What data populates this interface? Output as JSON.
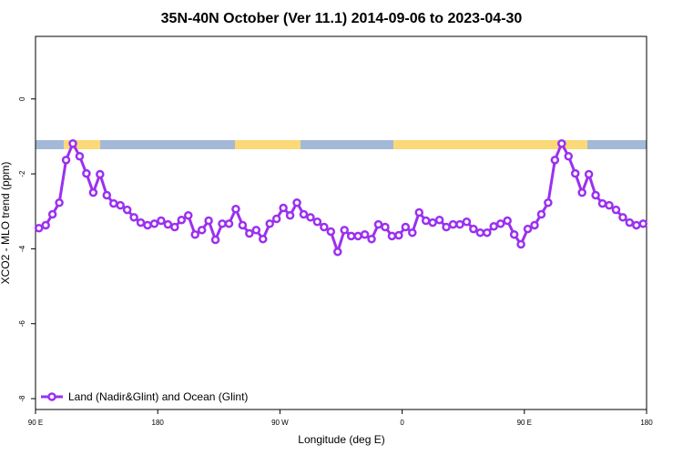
{
  "chart_data": {
    "type": "line",
    "title": "35N-40N October (Ver 11.1)   2014-09-06 to 2023-04-30",
    "x_label": "Longitude (deg E)",
    "y_label": "XCO2 - MLO trend (ppm)",
    "x": [
      92.5,
      97.5,
      102.5,
      107.5,
      112.5,
      117.5,
      122.5,
      127.5,
      132.5,
      137.5,
      142.5,
      147.5,
      152.5,
      157.5,
      162.5,
      167.5,
      172.5,
      177.5,
      182.5,
      187.5,
      192.5,
      197.5,
      202.5,
      207.5,
      212.5,
      217.5,
      222.5,
      227.5,
      232.5,
      237.5,
      242.5,
      247.5,
      252.5,
      257.5,
      262.5,
      267.5,
      272.5,
      277.5,
      282.5,
      287.5,
      292.5,
      297.5,
      302.5,
      307.5,
      312.5,
      317.5,
      322.5,
      327.5,
      332.5,
      337.5,
      342.5,
      347.5,
      352.5,
      357.5,
      362.5,
      367.5,
      372.5,
      377.5,
      382.5,
      387.5,
      392.5,
      397.5,
      402.5,
      407.5,
      412.5,
      417.5,
      422.5,
      427.5,
      432.5,
      437.5,
      442.5,
      447.5,
      452.5,
      457.5,
      462.5,
      467.5,
      472.5,
      477.5,
      482.5,
      487.5,
      492.5,
      497.5,
      502.5,
      507.5,
      512.5,
      517.5,
      522.5,
      527.5,
      532.5,
      537.5
    ],
    "series": [
      {
        "name": "Land (Nadir&Glint) and Ocean (Glint)",
        "color": "#9b30f0",
        "values": [
          -3.45,
          -3.37,
          -3.08,
          -2.77,
          -1.63,
          -1.19,
          -1.53,
          -1.99,
          -2.5,
          -2.01,
          -2.57,
          -2.79,
          -2.84,
          -2.96,
          -3.16,
          -3.3,
          -3.37,
          -3.33,
          -3.25,
          -3.35,
          -3.42,
          -3.23,
          -3.11,
          -3.62,
          -3.5,
          -3.25,
          -3.76,
          -3.33,
          -3.33,
          -2.94,
          -3.37,
          -3.59,
          -3.5,
          -3.74,
          -3.33,
          -3.2,
          -2.91,
          -3.11,
          -2.77,
          -3.08,
          -3.16,
          -3.28,
          -3.42,
          -3.54,
          -4.08,
          -3.5,
          -3.66,
          -3.66,
          -3.62,
          -3.74,
          -3.35,
          -3.42,
          -3.66,
          -3.64,
          -3.42,
          -3.57,
          -3.03,
          -3.25,
          -3.3,
          -3.23,
          -3.42,
          -3.35,
          -3.35,
          -3.28,
          -3.47,
          -3.57,
          -3.57,
          -3.4,
          -3.33,
          -3.25,
          -3.62,
          -3.88,
          -3.47,
          -3.37,
          -3.08,
          -2.77,
          -1.63,
          -1.19,
          -1.53,
          -1.99,
          -2.5,
          -2.01,
          -2.57,
          -2.79,
          -2.84,
          -2.96,
          -3.16,
          -3.3,
          -3.37,
          -3.33
        ]
      }
    ],
    "xlim": [
      90,
      540
    ],
    "xticks": [
      {
        "value": 90,
        "label": "90 E"
      },
      {
        "value": 180,
        "label": "180"
      },
      {
        "value": 270,
        "label": "90 W"
      },
      {
        "value": 360,
        "label": "0"
      },
      {
        "value": 450,
        "label": "90 E"
      },
      {
        "value": 540,
        "label": "180"
      }
    ],
    "ylim": [
      -8.29,
      1.67
    ],
    "yticks": [
      0,
      -2,
      -4,
      -6,
      -8
    ],
    "legend": "bottomleft"
  }
}
